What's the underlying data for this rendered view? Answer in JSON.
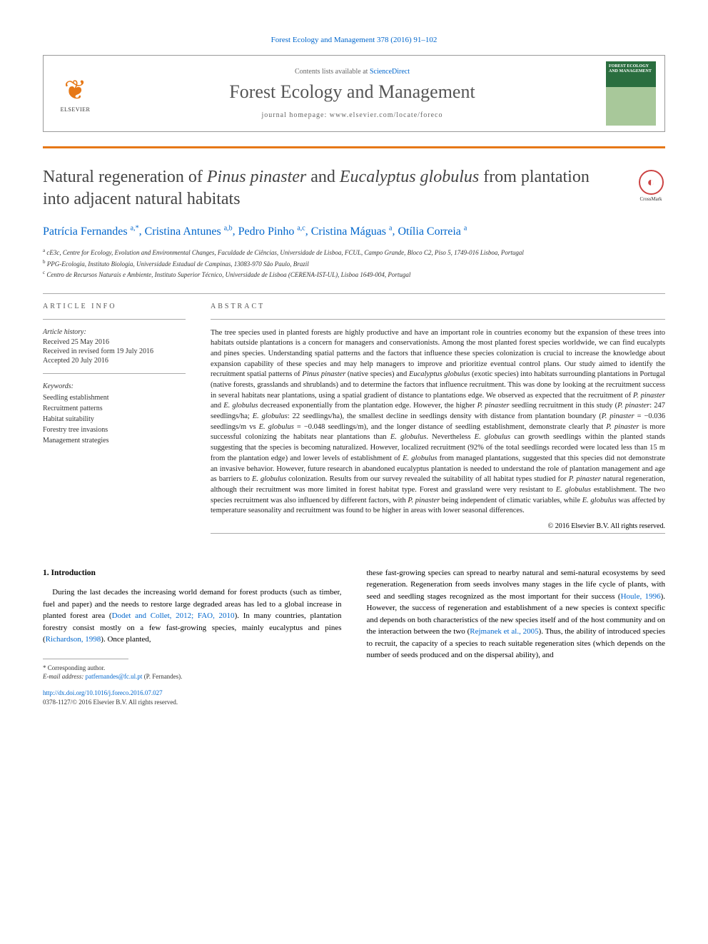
{
  "topCitation": "Forest Ecology and Management 378 (2016) 91–102",
  "contentsLine": "Contents lists available at ",
  "contentsLink": "ScienceDirect",
  "journalName": "Forest Ecology and Management",
  "homepageLabel": "journal homepage: www.elsevier.com/locate/foreco",
  "elsevierName": "ELSEVIER",
  "coverTitle": "FOREST ECOLOGY AND MANAGEMENT",
  "crossmarkLabel": "CrossMark",
  "title": {
    "pre": "Natural regeneration of ",
    "it1": "Pinus pinaster",
    "mid": " and ",
    "it2": "Eucalyptus globulus",
    "post": " from plantation into adjacent natural habitats"
  },
  "authors": [
    {
      "name": "Patrícia Fernandes",
      "sup": "a,*"
    },
    {
      "name": "Cristina Antunes",
      "sup": "a,b"
    },
    {
      "name": "Pedro Pinho",
      "sup": "a,c"
    },
    {
      "name": "Cristina Máguas",
      "sup": "a"
    },
    {
      "name": "Otília Correia",
      "sup": "a"
    }
  ],
  "affiliations": [
    {
      "sup": "a",
      "text": "cE3c, Centre for Ecology, Evolution and Environmental Changes, Faculdade de Ciências, Universidade de Lisboa, FCUL, Campo Grande, Bloco C2, Piso 5, 1749-016 Lisboa, Portugal"
    },
    {
      "sup": "b",
      "text": "PPG-Ecologia, Instituto Biologia, Universidade Estadual de Campinas, 13083-970 São Paulo, Brazil"
    },
    {
      "sup": "c",
      "text": "Centro de Recursos Naturais e Ambiente, Instituto Superior Técnico, Universidade de Lisboa (CERENA-IST-UL), Lisboa 1649-004, Portugal"
    }
  ],
  "infoHeading": "ARTICLE INFO",
  "historyHeading": "Article history:",
  "history": [
    "Received 25 May 2016",
    "Received in revised form 19 July 2016",
    "Accepted 20 July 2016"
  ],
  "keywordsHeading": "Keywords:",
  "keywords": [
    "Seedling establishment",
    "Recruitment patterns",
    "Habitat suitability",
    "Forestry tree invasions",
    "Management strategies"
  ],
  "abstractHeading": "ABSTRACT",
  "abstractText": "The tree species used in planted forests are highly productive and have an important role in countries economy but the expansion of these trees into habitats outside plantations is a concern for managers and conservationists. Among the most planted forest species worldwide, we can find eucalypts and pines species. Understanding spatial patterns and the factors that influence these species colonization is crucial to increase the knowledge about expansion capability of these species and may help managers to improve and prioritize eventual control plans. Our study aimed to identify the recruitment spatial patterns of <em>Pinus pinaster</em> (native species) and <em>Eucalyptus globulus</em> (exotic species) into habitats surrounding plantations in Portugal (native forests, grasslands and shrublands) and to determine the factors that influence recruitment. This was done by looking at the recruitment success in several habitats near plantations, using a spatial gradient of distance to plantations edge. We observed as expected that the recruitment of <em>P. pinaster</em> and <em>E. globulus</em> decreased exponentially from the plantation edge. However, the higher <em>P. pinaster</em> seedling recruitment in this study (<em>P. pinaster</em>: 247 seedlings/ha; <em>E. globulus</em>: 22 seedlings/ha), the smallest decline in seedlings density with distance from plantation boundary (<em>P. pinaster</em> = −0.036 seedlings/m vs <em>E. globulus</em> = −0.048 seedlings/m), and the longer distance of seedling establishment, demonstrate clearly that <em>P. pinaster</em> is more successful colonizing the habitats near plantations than <em>E. globulus</em>. Nevertheless <em>E. globulus</em> can growth seedlings within the planted stands suggesting that the species is becoming naturalized. However, localized recruitment (92% of the total seedlings recorded were located less than 15 m from the plantation edge) and lower levels of establishment of <em>E. globulus</em> from managed plantations, suggested that this species did not demonstrate an invasive behavior. However, future research in abandoned eucalyptus plantation is needed to understand the role of plantation management and age as barriers to <em>E. globulus</em> colonization. Results from our survey revealed the suitability of all habitat types studied for <em>P. pinaster</em> natural regeneration, although their recruitment was more limited in forest habitat type. Forest and grassland were very resistant to <em>E. globulus</em> establishment. The two species recruitment was also influenced by different factors, with <em>P. pinaster</em> being independent of climatic variables, while <em>E. globulus</em> was affected by temperature seasonality and recruitment was found to be higher in areas with lower seasonal differences.",
  "copyright": "© 2016 Elsevier B.V. All rights reserved.",
  "introHeading": "1. Introduction",
  "introCol1": "During the last decades the increasing world demand for forest products (such as timber, fuel and paper) and the needs to restore large degraded areas has led to a global increase in planted forest area (<a>Dodet and Collet, 2012; FAO, 2010</a>). In many countries, plantation forestry consist mostly on a few fast-growing species, mainly eucalyptus and pines (<a>Richardson, 1998</a>). Once planted,",
  "introCol2": "these fast-growing species can spread to nearby natural and semi-natural ecosystems by seed regeneration. Regeneration from seeds involves many stages in the life cycle of plants, with seed and seedling stages recognized as the most important for their success (<a>Houle, 1996</a>). However, the success of regeneration and establishment of a new species is context specific and depends on both characteristics of the new species itself and of the host community and on the interaction between the two (<a>Rejmanek et al., 2005</a>). Thus, the ability of introduced species to recruit, the capacity of a species to reach suitable regeneration sites (which depends on the number of seeds produced and on the dispersal ability), and",
  "correspHeading": "* Corresponding author.",
  "emailLabel": "E-mail address: ",
  "emailValue": "patfernandes@fc.ul.pt",
  "emailAuthor": " (P. Fernandes).",
  "doi": "http://dx.doi.org/10.1016/j.foreco.2016.07.027",
  "issn": "0378-1127/© 2016 Elsevier B.V. All rights reserved.",
  "colors": {
    "link": "#0066cc",
    "orange": "#e67817",
    "rule": "#aaaaaa",
    "text": "#222222"
  }
}
